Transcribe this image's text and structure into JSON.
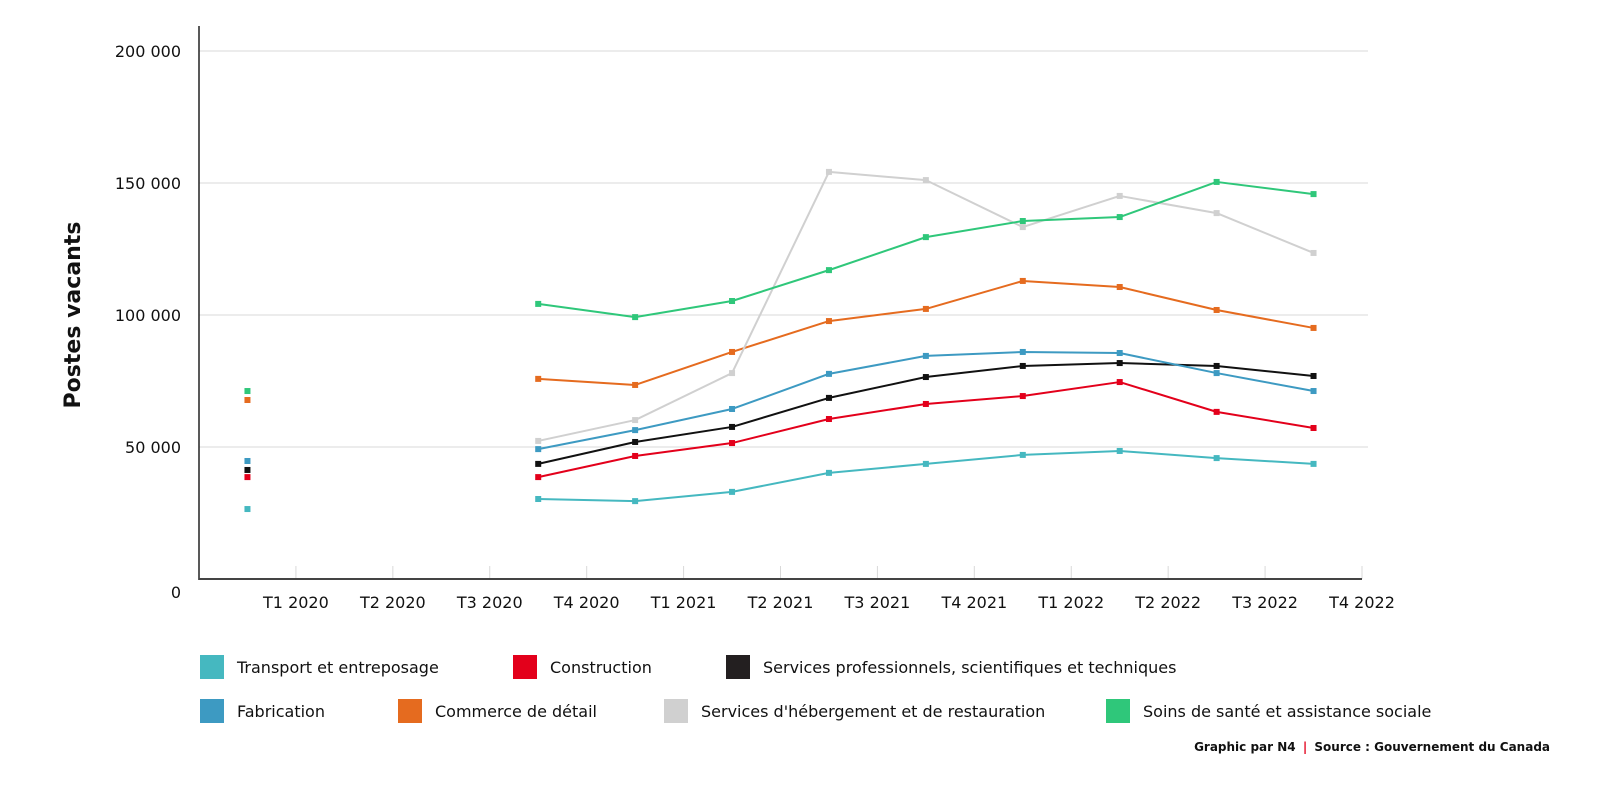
{
  "chart_data": {
    "type": "line",
    "title": "",
    "xlabel": "",
    "ylabel": "Postes vacants",
    "ylim": [
      0,
      200000
    ],
    "yticks": [
      0,
      50000,
      100000,
      150000,
      200000
    ],
    "ytick_labels": [
      "0",
      "50 000",
      "100 000",
      "150 000",
      "200 000"
    ],
    "grid": true,
    "xtick_labels": [
      "T1 2020",
      "T2 2020",
      "T3 2020",
      "T4 2020",
      "T1 2021",
      "T2 2021",
      "T3 2021",
      "T4 2021",
      "T1 2022",
      "T2 2022",
      "T3 2022",
      "T4 2022"
    ],
    "x_slots": 12,
    "x": [
      0,
      3,
      4,
      5,
      6,
      7,
      8,
      9,
      10,
      11
    ],
    "legend_position": "bottom",
    "series": [
      {
        "name": "Transport et entreposage",
        "color": "#45b8c0",
        "values": [
          26500,
          30300,
          29500,
          33000,
          40200,
          43600,
          47000,
          48500,
          45800,
          43600
        ]
      },
      {
        "name": "Construction",
        "color": "#e3001b",
        "values": [
          38600,
          38600,
          46600,
          51500,
          60600,
          66300,
          69300,
          74600,
          63300,
          57200
        ]
      },
      {
        "name": "Services professionnels, scientifiques et techniques",
        "color": "#111111",
        "values": [
          41300,
          43600,
          51900,
          57600,
          68600,
          76500,
          80700,
          81800,
          80700,
          76900
        ]
      },
      {
        "name": "Fabrication",
        "color": "#3d9ac2",
        "values": [
          44700,
          49200,
          56400,
          64400,
          77700,
          84500,
          86000,
          85600,
          78000,
          71200
        ]
      },
      {
        "name": "Commerce de détail",
        "color": "#e56b1f",
        "values": [
          67800,
          75800,
          73500,
          86000,
          97700,
          102300,
          112900,
          110600,
          101900,
          95100
        ]
      },
      {
        "name": "Services d'hébergement et de restauration",
        "color": "#d0d0d0",
        "values": [
          null,
          52300,
          60200,
          78000,
          154200,
          151100,
          133300,
          145100,
          138600,
          123500
        ]
      },
      {
        "name": "Soins de santé et assistance sociale",
        "color": "#2fc77a",
        "values": [
          71200,
          104200,
          99200,
          105300,
          117000,
          129500,
          135600,
          137100,
          150400,
          145800
        ]
      }
    ]
  },
  "legend": {
    "items": [
      {
        "label": "Transport et entreposage",
        "color": "#45b8c0"
      },
      {
        "label": "Construction",
        "color": "#e3001b"
      },
      {
        "label": "Services professionnels, scientifiques et techniques",
        "color": "#231f20"
      },
      {
        "label": "Fabrication",
        "color": "#3d9ac2"
      },
      {
        "label": "Commerce de détail",
        "color": "#e56b1f"
      },
      {
        "label": "Services d'hébergement et de restauration",
        "color": "#d0d0d0"
      },
      {
        "label": "Soins de santé et assistance sociale",
        "color": "#2fc77a"
      }
    ]
  },
  "footer": {
    "credit": "Graphic par N4",
    "separator": "|",
    "source": "Source : Gouvernement du Canada"
  }
}
